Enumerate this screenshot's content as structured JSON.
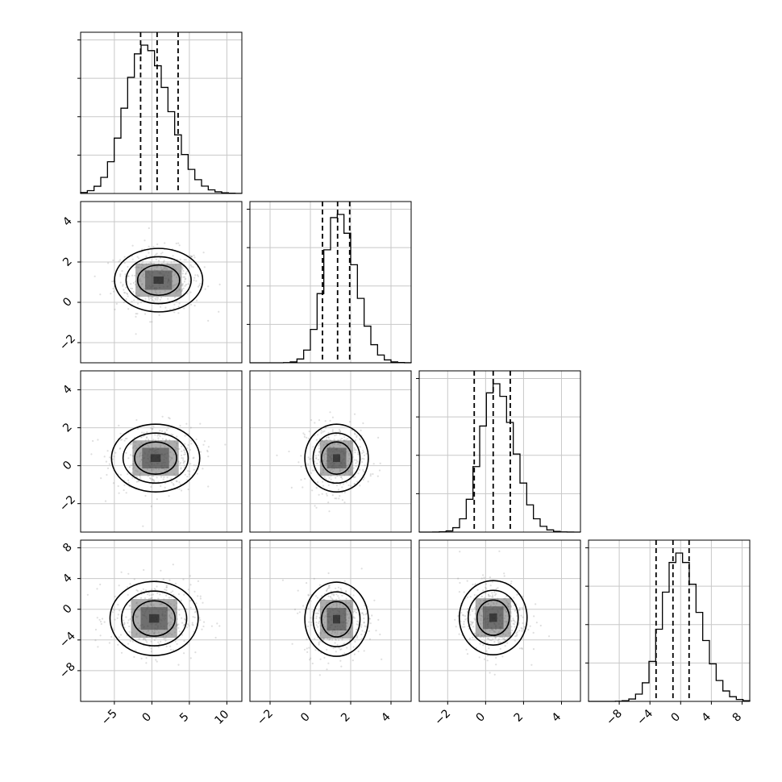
{
  "chart_data": {
    "type": "corner",
    "title": "",
    "parameters": [
      "",
      "",
      "",
      ""
    ],
    "grid": true,
    "quantile_lines": "dashed",
    "ranges": [
      [
        -9.5,
        12
      ],
      [
        -3,
        5
      ],
      [
        -3.5,
        5
      ],
      [
        -12,
        9
      ]
    ],
    "ticks": [
      {
        "values": [
          -5,
          0,
          5,
          10
        ],
        "labels": [
          "−5",
          "0",
          "5",
          "10"
        ]
      },
      {
        "values": [
          -2,
          0,
          2,
          4
        ],
        "labels": [
          "−2",
          "0",
          "2",
          "4"
        ]
      },
      {
        "values": [
          -2,
          0,
          2,
          4
        ],
        "labels": [
          "−2",
          "0",
          "2",
          "4"
        ]
      },
      {
        "values": [
          -8,
          -4,
          0,
          4,
          8
        ],
        "labels": [
          "−8",
          "−4",
          "0",
          "4",
          "8"
        ]
      }
    ],
    "marginals": [
      {
        "parameter": 0,
        "quantiles": [
          -1.5,
          0.7,
          3.5
        ],
        "mode": -1,
        "spread": 2.8
      },
      {
        "parameter": 1,
        "quantiles": [
          0.6,
          1.35,
          1.95
        ],
        "mode": 1.35,
        "spread": 0.75
      },
      {
        "parameter": 2,
        "quantiles": [
          -0.6,
          0.4,
          1.3
        ],
        "mode": 0.5,
        "spread": 0.85
      },
      {
        "parameter": 3,
        "quantiles": [
          -3.2,
          -1.0,
          1.1
        ],
        "mode": -0.3,
        "spread": 2.3
      }
    ],
    "joint_panels": [
      {
        "x": 0,
        "y": 1,
        "center": [
          0.9,
          1.1
        ]
      },
      {
        "x": 0,
        "y": 2,
        "center": [
          0.5,
          0.4
        ]
      },
      {
        "x": 1,
        "y": 2,
        "center": [
          1.3,
          0.4
        ]
      },
      {
        "x": 0,
        "y": 3,
        "center": [
          0.3,
          -1.2
        ]
      },
      {
        "x": 1,
        "y": 3,
        "center": [
          1.3,
          -1.3
        ]
      },
      {
        "x": 2,
        "y": 3,
        "center": [
          0.4,
          -1.1
        ]
      }
    ]
  }
}
